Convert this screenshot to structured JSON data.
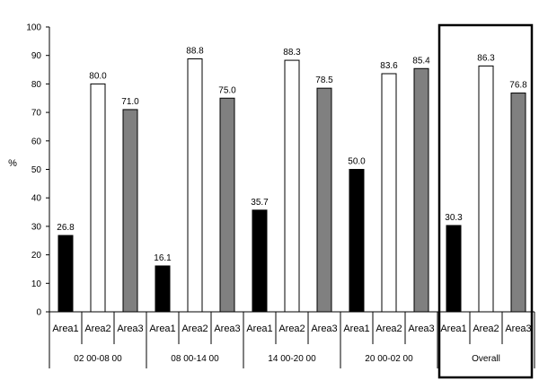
{
  "chart_data": {
    "type": "bar",
    "ylabel": "%",
    "ylim": [
      0,
      100
    ],
    "yticks": [
      0,
      10,
      20,
      30,
      40,
      50,
      60,
      70,
      80,
      90,
      100
    ],
    "grid": false,
    "legend": "none",
    "groups": [
      {
        "label": "02 00-08 00",
        "highlighted": false,
        "bars": [
          {
            "category": "Area1",
            "value": 26.8,
            "value_label": "26.8",
            "color": "#000000"
          },
          {
            "category": "Area2",
            "value": 80.0,
            "value_label": "80.0",
            "color": "#ffffff"
          },
          {
            "category": "Area3",
            "value": 71.0,
            "value_label": "71.0",
            "color": "#808080"
          }
        ]
      },
      {
        "label": "08 00-14 00",
        "highlighted": false,
        "bars": [
          {
            "category": "Area1",
            "value": 16.1,
            "value_label": "16.1",
            "color": "#000000"
          },
          {
            "category": "Area2",
            "value": 88.8,
            "value_label": "88.8",
            "color": "#ffffff"
          },
          {
            "category": "Area3",
            "value": 75.0,
            "value_label": "75.0",
            "color": "#808080"
          }
        ]
      },
      {
        "label": "14 00-20 00",
        "highlighted": false,
        "bars": [
          {
            "category": "Area1",
            "value": 35.7,
            "value_label": "35.7",
            "color": "#000000"
          },
          {
            "category": "Area2",
            "value": 88.3,
            "value_label": "88.3",
            "color": "#ffffff"
          },
          {
            "category": "Area3",
            "value": 78.5,
            "value_label": "78.5",
            "color": "#808080"
          }
        ]
      },
      {
        "label": "20 00-02 00",
        "highlighted": false,
        "bars": [
          {
            "category": "Area1",
            "value": 50.0,
            "value_label": "50.0",
            "color": "#000000"
          },
          {
            "category": "Area2",
            "value": 83.6,
            "value_label": "83.6",
            "color": "#ffffff"
          },
          {
            "category": "Area3",
            "value": 85.4,
            "value_label": "85.4",
            "color": "#808080"
          }
        ]
      },
      {
        "label": "Overall",
        "highlighted": true,
        "bars": [
          {
            "category": "Area1",
            "value": 30.3,
            "value_label": "30.3",
            "color": "#000000"
          },
          {
            "category": "Area2",
            "value": 86.3,
            "value_label": "86.3",
            "color": "#ffffff"
          },
          {
            "category": "Area3",
            "value": 76.8,
            "value_label": "76.8",
            "color": "#808080"
          }
        ]
      }
    ]
  }
}
